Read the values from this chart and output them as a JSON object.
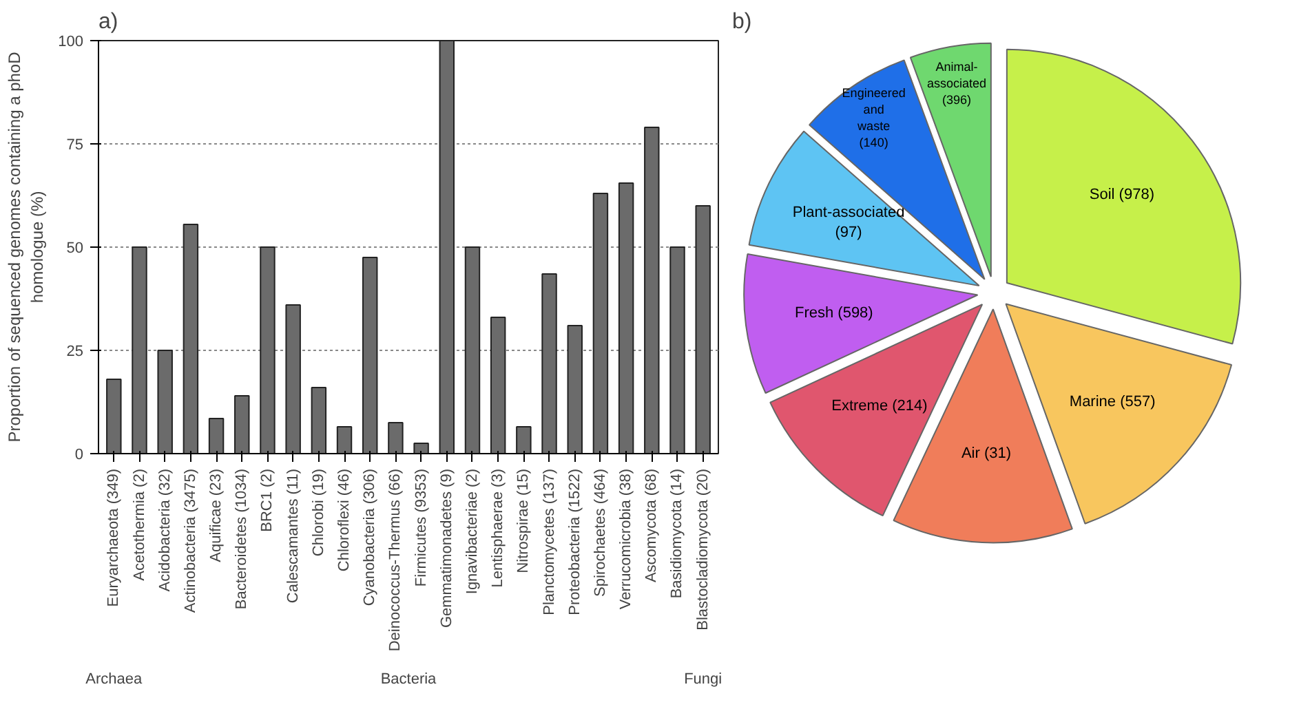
{
  "chart_data": [
    {
      "type": "bar",
      "title": "a)",
      "ylabel": "Proportion of sequenced genomes containing a phoD homologue (%)",
      "categories": [
        "Euryarchaeota (349)",
        "Acetothermia (2)",
        "Acidobacteria (32)",
        "Actinobacteria (3475)",
        "Aquificae (23)",
        "Bacteroidetes (1034)",
        "BRC1 (2)",
        "Calescamantes (11)",
        "Chlorobi (19)",
        "Chloroflexi (46)",
        "Cyanobacteria (306)",
        "Deinococcus-Thermus (66)",
        "Firmicutes (9353)",
        "Gemmatimonadetes (9)",
        "Ignavibacteriae (2)",
        "Lentisphaerae (3)",
        "Nitrospirae (15)",
        "Planctomycetes (137)",
        "Proteobacteria (1522)",
        "Spirochaetes (464)",
        "Verrucomicrobia (38)",
        "Ascomycota (68)",
        "Basidiomycota (14)",
        "Blastocladiomycota (20)"
      ],
      "values": [
        18,
        50,
        25,
        55.5,
        8.5,
        14,
        50,
        36,
        16,
        6.5,
        47.5,
        7.5,
        2.5,
        100,
        50,
        33,
        6.5,
        43.5,
        31,
        63,
        65.5,
        79,
        50,
        60
      ],
      "color": "#6b6b6b",
      "ylim": [
        0,
        100
      ],
      "yticks": [
        0,
        25,
        50,
        75,
        100
      ],
      "grid": "y",
      "annotations": [
        "Archaea",
        "Bacteria",
        "Fungi"
      ]
    },
    {
      "type": "pie",
      "title": "b)",
      "categories": [
        "Soil (978)",
        "Marine (557)",
        "Air (31)",
        "Extreme (214)",
        "Fresh (598)",
        "Plant-associated (97)",
        "Engineered and waste (140)",
        "Animal-associated (396)"
      ],
      "values": [
        29.2,
        15.3,
        12.5,
        11.1,
        9.7,
        8.7,
        7.9,
        5.6
      ],
      "colors": [
        "#c6f04a",
        "#f8c65e",
        "#f07d5a",
        "#e0566e",
        "#c05ef0",
        "#5ec4f3",
        "#1f6fe8",
        "#6fd86f"
      ]
    }
  ]
}
